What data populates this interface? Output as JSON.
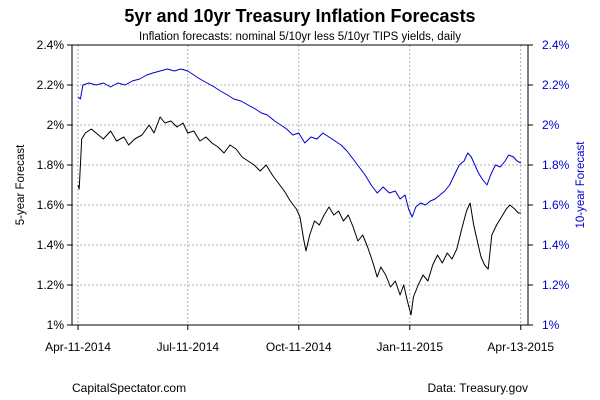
{
  "header": {
    "title": "5yr and 10yr Treasury Inflation Forecasts",
    "subtitle": "Inflation forecasts: nominal 5/10yr less 5/10yr TIPS yields, daily"
  },
  "footer": {
    "left": "CapitalSpectator.com",
    "right": "Data: Treasury.gov"
  },
  "chart_data": {
    "type": "line",
    "title": "5yr and 10yr Treasury Inflation Forecasts",
    "subtitle": "Inflation forecasts: nominal 5/10yr less 5/10yr TIPS yields, daily",
    "ylabel_left": "5-year Forecast",
    "ylabel_right": "10-year Forecast",
    "ylim": [
      1.0,
      2.4
    ],
    "yticks": [
      1.0,
      1.2,
      1.4,
      1.6,
      1.8,
      2.0,
      2.2,
      2.4
    ],
    "ytick_labels": [
      "1%",
      "1.2%",
      "1.4%",
      "1.6%",
      "1.8%",
      "2%",
      "2.2%",
      "2.4%"
    ],
    "xlim": [
      "2014-04-06",
      "2015-04-19"
    ],
    "xticks": [
      "2014-04-11",
      "2014-07-11",
      "2014-10-11",
      "2015-01-11",
      "2015-04-13"
    ],
    "xtick_labels": [
      "Apr-11-2014",
      "Jul-11-2014",
      "Oct-11-2014",
      "Jan-11-2015",
      "Apr-13-2015"
    ],
    "grid": true,
    "series": [
      {
        "name": "5-year Forecast",
        "axis": "left",
        "color": "#000000",
        "points": [
          [
            "2014-04-11",
            1.7
          ],
          [
            "2014-04-12",
            1.68
          ],
          [
            "2014-04-14",
            1.93
          ],
          [
            "2014-04-17",
            1.96
          ],
          [
            "2014-04-22",
            1.98
          ],
          [
            "2014-04-28",
            1.95
          ],
          [
            "2014-05-02",
            1.93
          ],
          [
            "2014-05-08",
            1.97
          ],
          [
            "2014-05-13",
            1.92
          ],
          [
            "2014-05-19",
            1.94
          ],
          [
            "2014-05-23",
            1.9
          ],
          [
            "2014-05-28",
            1.93
          ],
          [
            "2014-06-03",
            1.95
          ],
          [
            "2014-06-09",
            2.0
          ],
          [
            "2014-06-13",
            1.96
          ],
          [
            "2014-06-18",
            2.04
          ],
          [
            "2014-06-22",
            2.01
          ],
          [
            "2014-06-27",
            2.02
          ],
          [
            "2014-07-02",
            1.99
          ],
          [
            "2014-07-07",
            2.01
          ],
          [
            "2014-07-11",
            1.96
          ],
          [
            "2014-07-16",
            1.97
          ],
          [
            "2014-07-21",
            1.92
          ],
          [
            "2014-07-26",
            1.94
          ],
          [
            "2014-07-31",
            1.91
          ],
          [
            "2014-08-05",
            1.89
          ],
          [
            "2014-08-10",
            1.86
          ],
          [
            "2014-08-15",
            1.9
          ],
          [
            "2014-08-20",
            1.88
          ],
          [
            "2014-08-25",
            1.84
          ],
          [
            "2014-08-30",
            1.82
          ],
          [
            "2014-09-04",
            1.8
          ],
          [
            "2014-09-09",
            1.77
          ],
          [
            "2014-09-14",
            1.8
          ],
          [
            "2014-09-19",
            1.75
          ],
          [
            "2014-09-24",
            1.71
          ],
          [
            "2014-09-29",
            1.67
          ],
          [
            "2014-10-04",
            1.62
          ],
          [
            "2014-10-09",
            1.58
          ],
          [
            "2014-10-12",
            1.54
          ],
          [
            "2014-10-15",
            1.43
          ],
          [
            "2014-10-17",
            1.37
          ],
          [
            "2014-10-20",
            1.45
          ],
          [
            "2014-10-24",
            1.52
          ],
          [
            "2014-10-28",
            1.5
          ],
          [
            "2014-11-01",
            1.55
          ],
          [
            "2014-11-05",
            1.59
          ],
          [
            "2014-11-09",
            1.55
          ],
          [
            "2014-11-13",
            1.57
          ],
          [
            "2014-11-17",
            1.52
          ],
          [
            "2014-11-21",
            1.55
          ],
          [
            "2014-11-25",
            1.49
          ],
          [
            "2014-11-29",
            1.42
          ],
          [
            "2014-12-03",
            1.45
          ],
          [
            "2014-12-07",
            1.39
          ],
          [
            "2014-12-11",
            1.32
          ],
          [
            "2014-12-15",
            1.24
          ],
          [
            "2014-12-18",
            1.29
          ],
          [
            "2014-12-22",
            1.25
          ],
          [
            "2014-12-26",
            1.19
          ],
          [
            "2014-12-30",
            1.22
          ],
          [
            "2015-01-03",
            1.15
          ],
          [
            "2015-01-06",
            1.2
          ],
          [
            "2015-01-09",
            1.12
          ],
          [
            "2015-01-12",
            1.05
          ],
          [
            "2015-01-14",
            1.14
          ],
          [
            "2015-01-18",
            1.2
          ],
          [
            "2015-01-22",
            1.25
          ],
          [
            "2015-01-26",
            1.22
          ],
          [
            "2015-01-30",
            1.3
          ],
          [
            "2015-02-03",
            1.35
          ],
          [
            "2015-02-07",
            1.31
          ],
          [
            "2015-02-11",
            1.36
          ],
          [
            "2015-02-15",
            1.33
          ],
          [
            "2015-02-19",
            1.38
          ],
          [
            "2015-02-23",
            1.48
          ],
          [
            "2015-02-27",
            1.57
          ],
          [
            "2015-03-02",
            1.61
          ],
          [
            "2015-03-05",
            1.5
          ],
          [
            "2015-03-08",
            1.42
          ],
          [
            "2015-03-11",
            1.34
          ],
          [
            "2015-03-14",
            1.3
          ],
          [
            "2015-03-17",
            1.28
          ],
          [
            "2015-03-20",
            1.45
          ],
          [
            "2015-03-24",
            1.5
          ],
          [
            "2015-03-28",
            1.54
          ],
          [
            "2015-04-01",
            1.58
          ],
          [
            "2015-04-04",
            1.6
          ],
          [
            "2015-04-08",
            1.58
          ],
          [
            "2015-04-11",
            1.56
          ],
          [
            "2015-04-13",
            1.56
          ]
        ]
      },
      {
        "name": "10-year Forecast",
        "axis": "right",
        "color": "#0000cc",
        "points": [
          [
            "2014-04-11",
            2.14
          ],
          [
            "2014-04-13",
            2.13
          ],
          [
            "2014-04-15",
            2.2
          ],
          [
            "2014-04-20",
            2.21
          ],
          [
            "2014-04-26",
            2.2
          ],
          [
            "2014-05-02",
            2.21
          ],
          [
            "2014-05-08",
            2.19
          ],
          [
            "2014-05-14",
            2.21
          ],
          [
            "2014-05-20",
            2.2
          ],
          [
            "2014-05-26",
            2.22
          ],
          [
            "2014-06-01",
            2.23
          ],
          [
            "2014-06-07",
            2.25
          ],
          [
            "2014-06-12",
            2.26
          ],
          [
            "2014-06-18",
            2.27
          ],
          [
            "2014-06-24",
            2.28
          ],
          [
            "2014-06-30",
            2.27
          ],
          [
            "2014-07-05",
            2.28
          ],
          [
            "2014-07-11",
            2.27
          ],
          [
            "2014-07-16",
            2.25
          ],
          [
            "2014-07-21",
            2.23
          ],
          [
            "2014-07-27",
            2.21
          ],
          [
            "2014-08-02",
            2.19
          ],
          [
            "2014-08-07",
            2.17
          ],
          [
            "2014-08-13",
            2.15
          ],
          [
            "2014-08-18",
            2.13
          ],
          [
            "2014-08-24",
            2.12
          ],
          [
            "2014-08-30",
            2.1
          ],
          [
            "2014-09-05",
            2.08
          ],
          [
            "2014-09-10",
            2.06
          ],
          [
            "2014-09-15",
            2.05
          ],
          [
            "2014-09-21",
            2.02
          ],
          [
            "2014-09-26",
            2.0
          ],
          [
            "2014-10-01",
            1.98
          ],
          [
            "2014-10-06",
            1.95
          ],
          [
            "2014-10-11",
            1.96
          ],
          [
            "2014-10-16",
            1.91
          ],
          [
            "2014-10-21",
            1.94
          ],
          [
            "2014-10-26",
            1.93
          ],
          [
            "2014-10-31",
            1.96
          ],
          [
            "2014-11-05",
            1.94
          ],
          [
            "2014-11-10",
            1.92
          ],
          [
            "2014-11-15",
            1.9
          ],
          [
            "2014-11-20",
            1.87
          ],
          [
            "2014-11-25",
            1.83
          ],
          [
            "2014-11-30",
            1.79
          ],
          [
            "2014-12-05",
            1.75
          ],
          [
            "2014-12-10",
            1.7
          ],
          [
            "2014-12-15",
            1.66
          ],
          [
            "2014-12-20",
            1.69
          ],
          [
            "2014-12-25",
            1.66
          ],
          [
            "2014-12-30",
            1.67
          ],
          [
            "2015-01-03",
            1.63
          ],
          [
            "2015-01-07",
            1.65
          ],
          [
            "2015-01-10",
            1.58
          ],
          [
            "2015-01-13",
            1.54
          ],
          [
            "2015-01-16",
            1.59
          ],
          [
            "2015-01-20",
            1.61
          ],
          [
            "2015-01-24",
            1.6
          ],
          [
            "2015-01-28",
            1.62
          ],
          [
            "2015-02-01",
            1.63
          ],
          [
            "2015-02-05",
            1.65
          ],
          [
            "2015-02-09",
            1.67
          ],
          [
            "2015-02-13",
            1.7
          ],
          [
            "2015-02-17",
            1.75
          ],
          [
            "2015-02-21",
            1.8
          ],
          [
            "2015-02-25",
            1.82
          ],
          [
            "2015-02-28",
            1.86
          ],
          [
            "2015-03-03",
            1.84
          ],
          [
            "2015-03-06",
            1.8
          ],
          [
            "2015-03-09",
            1.76
          ],
          [
            "2015-03-12",
            1.73
          ],
          [
            "2015-03-16",
            1.7
          ],
          [
            "2015-03-19",
            1.75
          ],
          [
            "2015-03-23",
            1.8
          ],
          [
            "2015-03-27",
            1.79
          ],
          [
            "2015-03-31",
            1.82
          ],
          [
            "2015-04-03",
            1.85
          ],
          [
            "2015-04-07",
            1.84
          ],
          [
            "2015-04-10",
            1.82
          ],
          [
            "2015-04-13",
            1.81
          ]
        ]
      }
    ]
  }
}
